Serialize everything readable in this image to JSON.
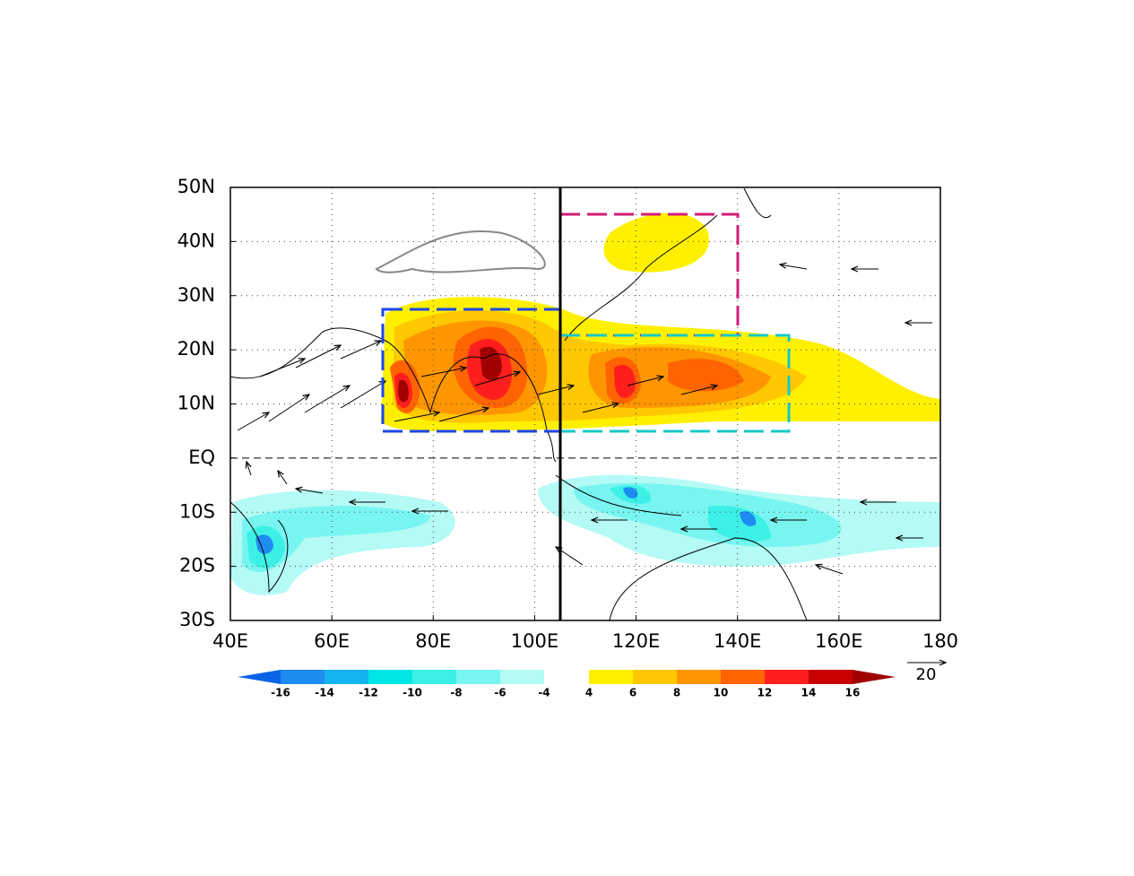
{
  "chart_data": {
    "type": "contour-map",
    "xlim": [
      40,
      180
    ],
    "ylim": [
      -30,
      50
    ],
    "xticks": [
      {
        "value": 40,
        "label": "40E"
      },
      {
        "value": 60,
        "label": "60E"
      },
      {
        "value": 80,
        "label": "80E"
      },
      {
        "value": 100,
        "label": "100E"
      },
      {
        "value": 120,
        "label": "120E"
      },
      {
        "value": 140,
        "label": "140E"
      },
      {
        "value": 160,
        "label": "160E"
      },
      180
    ],
    "yticks": [
      {
        "value": 50,
        "label": "50N"
      },
      {
        "value": 40,
        "label": "40N"
      },
      {
        "value": 30,
        "label": "30N"
      },
      {
        "value": 20,
        "label": "20N"
      },
      {
        "value": 10,
        "label": "10N"
      },
      {
        "value": 0,
        "label": "EQ"
      },
      {
        "value": -10,
        "label": "10S"
      },
      {
        "value": -20,
        "label": "20S"
      },
      {
        "value": -30,
        "label": "30S"
      }
    ],
    "grid": true,
    "colorbar_negative": {
      "ticks": [
        -16,
        -14,
        -12,
        -10,
        -8,
        -6,
        -4
      ],
      "colors": [
        "#0a64e6",
        "#1e8cf0",
        "#14b4f0",
        "#00e6e6",
        "#3cf0e6",
        "#78f5f0",
        "#b4faf5"
      ]
    },
    "colorbar_positive": {
      "ticks": [
        4,
        6,
        8,
        10,
        12,
        14,
        16
      ],
      "colors": [
        "#fff000",
        "#ffc800",
        "#ff9600",
        "#ff6400",
        "#ff1e1e",
        "#c80000",
        "#a00000"
      ]
    },
    "reference_vector": 20
  }
}
